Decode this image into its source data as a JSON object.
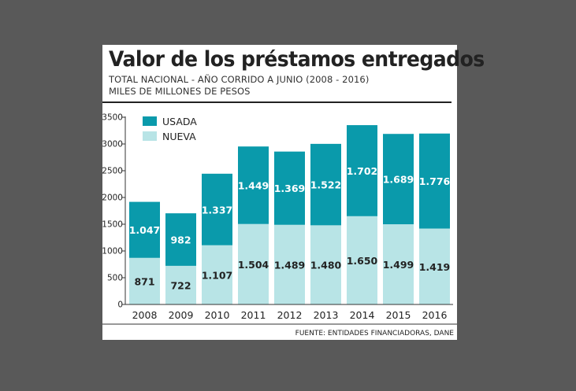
{
  "title": "Valor de los préstamos entregados",
  "subtitle1": "TOTAL NACIONAL - AÑO CORRIDO A JUNIO (2008 - 2016)",
  "subtitle2": "MILES DE MILLONES DE PESOS",
  "source": "FUENTE: ENTIDADES FINANCIADORAS, DANE",
  "colors": {
    "usada": "#0a9aab",
    "nueva": "#b8e4e6",
    "background": "#595959"
  },
  "chart_data": {
    "type": "bar",
    "stacked": true,
    "categories": [
      "2008",
      "2009",
      "2010",
      "2011",
      "2012",
      "2013",
      "2014",
      "2015",
      "2016"
    ],
    "series": [
      {
        "name": "NUEVA",
        "values": [
          871,
          722,
          1107,
          1504,
          1489,
          1480,
          1650,
          1499,
          1419
        ],
        "labels": [
          "871",
          "722",
          "1.107",
          "1.504",
          "1.489",
          "1.480",
          "1.650",
          "1.499",
          "1.419"
        ]
      },
      {
        "name": "USADA",
        "values": [
          1047,
          982,
          1337,
          1449,
          1369,
          1522,
          1702,
          1689,
          1776
        ],
        "labels": [
          "1.047",
          "982",
          "1.337",
          "1.449",
          "1.369",
          "1.522",
          "1.702",
          "1.689",
          "1.776"
        ]
      }
    ],
    "legend": [
      "USADA",
      "NUEVA"
    ],
    "ylim": [
      0,
      3500
    ],
    "yticks": [
      "0",
      "500",
      "1000",
      "1500",
      "2000",
      "2500",
      "3000",
      "3500"
    ],
    "title": "Valor de los préstamos entregados",
    "xlabel": "",
    "ylabel": ""
  }
}
